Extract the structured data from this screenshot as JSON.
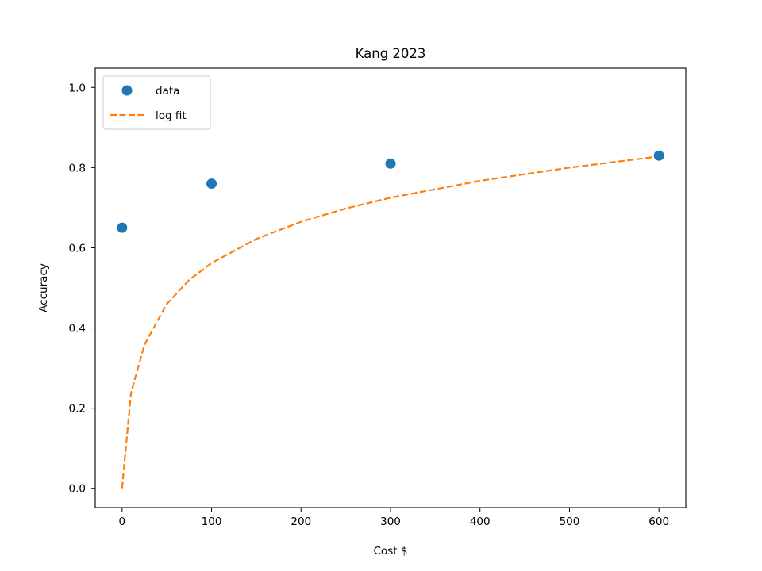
{
  "chart_data": {
    "type": "scatter",
    "title": "Kang 2023",
    "xlabel": "Cost $",
    "ylabel": "Accuracy",
    "xlim": [
      -30,
      630
    ],
    "ylim": [
      -0.048,
      1.048
    ],
    "xticks": [
      0,
      100,
      200,
      300,
      400,
      500,
      600
    ],
    "xtick_labels": [
      "0",
      "100",
      "200",
      "300",
      "400",
      "500",
      "600"
    ],
    "yticks": [
      0.0,
      0.2,
      0.4,
      0.6,
      0.8,
      1.0
    ],
    "ytick_labels": [
      "0.0",
      "0.2",
      "0.4",
      "0.6",
      "0.8",
      "1.0"
    ],
    "grid": false,
    "legend_position": "upper-left",
    "series": [
      {
        "name": "data",
        "kind": "scatter",
        "color": "#1f77b4",
        "x": [
          0,
          100,
          300,
          600
        ],
        "y": [
          0.65,
          0.76,
          0.81,
          0.83
        ]
      },
      {
        "name": "log fit",
        "kind": "line",
        "style": "dashed",
        "color": "#ff7f0e",
        "x": [
          0,
          10,
          25,
          50,
          75,
          100,
          150,
          200,
          250,
          300,
          400,
          500,
          600
        ],
        "y": [
          0.0,
          0.238,
          0.358,
          0.46,
          0.52,
          0.562,
          0.622,
          0.665,
          0.698,
          0.725,
          0.767,
          0.8,
          0.828
        ]
      }
    ]
  }
}
